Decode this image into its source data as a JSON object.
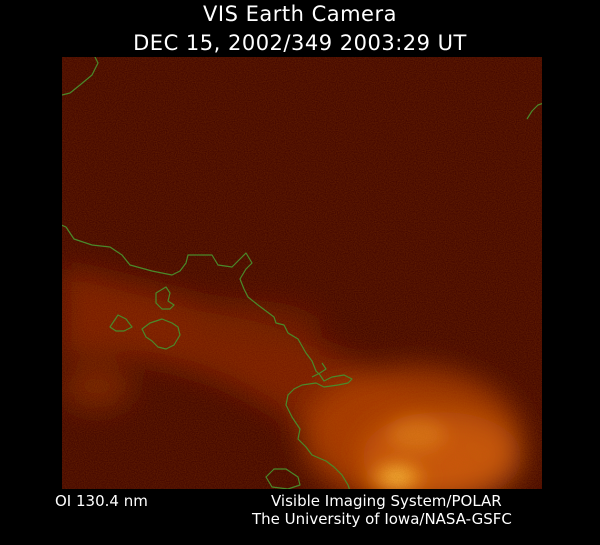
{
  "title": "VIS Earth Camera",
  "timestamp": "DEC 15, 2002/349 2003:29 UT",
  "filter": "OI  130.4 nm",
  "credit_line1": "Visible Imaging System/POLAR",
  "credit_line2": "The University of Iowa/NASA-GSFC",
  "colors": {
    "background": "#3c0000",
    "coastline": "#4a8a2a",
    "aurora_core": "#ffd040"
  }
}
